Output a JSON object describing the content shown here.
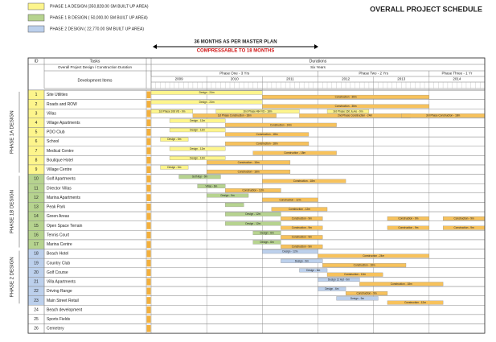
{
  "legend": [
    {
      "label": "PHASE 1 A DESIGN (350,828.00 SM BUILT UP AREA)",
      "color": "#fdf58c"
    },
    {
      "label": "PHASE 1 B DESIGN ( 50,000.00 SM BUILT UP AREA)",
      "color": "#b6d38f"
    },
    {
      "label": "PHASE 2 DESIGN ( 22,770.00 SM BUILT UP AREA)",
      "color": "#bcd0ec"
    }
  ],
  "title": "OVERALL PROJECT SCHEDULE",
  "span": {
    "line1": "36 MONTHS AS PER MASTER PLAN",
    "line2": "COMPRESSABLE TO 18 MONTHS"
  },
  "construction_color": "#f7c25c",
  "table": {
    "headers": {
      "id": "ID",
      "tasks": "Tasks",
      "durations": "Durations"
    },
    "overall": {
      "task": "Overall Project Design / Construction Duration",
      "duration": "Six Years"
    },
    "items_header": "Development Items",
    "phases": [
      {
        "label": "Phase One - 3 Yrs",
        "start": 0,
        "end": 36
      },
      {
        "label": "Phase Two - 2 Yrs",
        "start": 36,
        "end": 60
      },
      {
        "label": "Phase Three - 1 Yr",
        "start": 60,
        "end": 72
      }
    ],
    "years": [
      "2009",
      "2010",
      "2011",
      "2012",
      "2013",
      "2014"
    ],
    "sections": [
      {
        "label": "PHASE 1A DESIGN",
        "color": "#fdf58c",
        "rows": [
          {
            "id": 1,
            "name": "Site Utilities",
            "design": [
              {
                "label": "Design - 24m",
                "start": 0,
                "end": 24
              }
            ],
            "construction": [
              {
                "label": "Construction - 36m",
                "start": 24,
                "end": 60
              }
            ]
          },
          {
            "id": 2,
            "name": "Roads and ROW",
            "design": [
              {
                "label": "Design - 24m",
                "start": 0,
                "end": 24
              }
            ],
            "construction": [
              {
                "label": "Construction - 36m",
                "start": 24,
                "end": 60
              }
            ]
          },
          {
            "id": 3,
            "name": "Villas",
            "design": [
              {
                "label": "1st Phase 108 VD - 9m",
                "start": 0,
                "end": 9
              },
              {
                "label": "2nd Phase 484 VD - 18m",
                "start": 14,
                "end": 32
              },
              {
                "label": "3rd Phase 160 Ju.Ao - 9m",
                "start": 38,
                "end": 47
              }
            ],
            "construction": [
              {
                "label": "1st Phase Construction - 18m",
                "start": 9,
                "end": 27
              },
              {
                "label": "2nd Phase Construction - 24m",
                "start": 32,
                "end": 56
              },
              {
                "label": "3rd Phase Construction - 18m",
                "start": 54,
                "end": 72
              }
            ]
          },
          {
            "id": 4,
            "name": "Village Apartments",
            "design": [
              {
                "label": "Design - 12m",
                "start": 4,
                "end": 16
              }
            ],
            "construction": [
              {
                "label": "Construction - 24m",
                "start": 16,
                "end": 40
              }
            ]
          },
          {
            "id": 5,
            "name": "PDO Club",
            "design": [
              {
                "label": "Design - 12m",
                "start": 4,
                "end": 16
              }
            ],
            "construction": [
              {
                "label": "Construction - 18m",
                "start": 16,
                "end": 34
              }
            ]
          },
          {
            "id": 6,
            "name": "School",
            "design": [
              {
                "label": "Design - 6m",
                "start": 2,
                "end": 8
              }
            ],
            "construction": [
              {
                "label": "Construction - 18m",
                "start": 16,
                "end": 34
              }
            ]
          },
          {
            "id": 7,
            "name": "Medical Centre",
            "design": [
              {
                "label": "Design - 12m",
                "start": 4,
                "end": 16
              }
            ],
            "construction": [
              {
                "label": "Construction - 18m",
                "start": 22,
                "end": 40
              }
            ]
          },
          {
            "id": 8,
            "name": "Boutique Hotel",
            "design": [
              {
                "label": "Design - 12m",
                "start": 4,
                "end": 16
              }
            ],
            "construction": [
              {
                "label": "Construction - 18m",
                "start": 12,
                "end": 30
              }
            ]
          },
          {
            "id": 9,
            "name": "Village Centre",
            "design": [
              {
                "label": "Design - 6m",
                "start": 2,
                "end": 8
              }
            ],
            "construction": [
              {
                "label": "Construction - 18m",
                "start": 12,
                "end": 30
              }
            ]
          }
        ]
      },
      {
        "label": "PHASE 1B DESIGN",
        "color": "#b6d38f",
        "rows": [
          {
            "id": 10,
            "name": "Golf Apartments",
            "design": [
              {
                "label": "Golf App - 9m",
                "start": 6,
                "end": 15
              }
            ],
            "construction": [
              {
                "label": "Construction - 18m",
                "start": 24,
                "end": 42
              }
            ]
          },
          {
            "id": 11,
            "name": "Director Villas",
            "design": [
              {
                "label": "Villas - 6m",
                "start": 10,
                "end": 16
              }
            ],
            "construction": [
              {
                "label": "Construction - 12m",
                "start": 16,
                "end": 28
              }
            ]
          },
          {
            "id": 12,
            "name": "Marina Apartments",
            "design": [
              {
                "label": "Design - 9m",
                "start": 12,
                "end": 21
              }
            ],
            "construction": [
              {
                "label": "Construction - 12m",
                "start": 24,
                "end": 36
              }
            ]
          },
          {
            "id": 13,
            "name": "Peak Park",
            "design": [
              {
                "start": 16,
                "end": 20
              }
            ],
            "construction": [
              {
                "label": "Construction - 12m",
                "start": 26,
                "end": 38
              }
            ]
          },
          {
            "id": 14,
            "name": "Green Areas",
            "design": [
              {
                "label": "Design - 12m",
                "start": 16,
                "end": 28
              }
            ],
            "construction": [
              {
                "label": "Construction - 9m",
                "start": 28,
                "end": 37
              },
              {
                "label": "Construction - 9m",
                "start": 51,
                "end": 60
              },
              {
                "label": "Construction - 9m",
                "start": 63,
                "end": 72
              }
            ]
          },
          {
            "id": 15,
            "name": "Open Space Terrain",
            "design": [
              {
                "label": "Design - 12m",
                "start": 16,
                "end": 28
              }
            ],
            "construction": [
              {
                "label": "Construction - 9m",
                "start": 28,
                "end": 37
              },
              {
                "label": "Construction - 9m",
                "start": 51,
                "end": 60
              },
              {
                "label": "Construction - 9m",
                "start": 63,
                "end": 72
              }
            ]
          },
          {
            "id": 16,
            "name": "Tennis Court",
            "design": [
              {
                "label": "Design - 6m",
                "start": 22,
                "end": 28
              }
            ],
            "construction": [
              {
                "label": "Construction - 9m",
                "start": 28,
                "end": 37
              }
            ]
          },
          {
            "id": 17,
            "name": "Marina Centre",
            "design": [
              {
                "label": "Design - 6m",
                "start": 22,
                "end": 28
              }
            ],
            "construction": [
              {
                "label": "Construction - 9m",
                "start": 28,
                "end": 37
              }
            ]
          }
        ]
      },
      {
        "label": "PHASE 2 DESIGN",
        "color": "#bcd0ec",
        "rows": [
          {
            "id": 18,
            "name": "Beach Hotel",
            "design": [
              {
                "label": "Design - 12m",
                "start": 24,
                "end": 36
              }
            ],
            "construction": [
              {
                "label": "Construction - 24m",
                "start": 36,
                "end": 60
              }
            ]
          },
          {
            "id": 19,
            "name": "Country Club",
            "design": [
              {
                "label": "Design - 9m",
                "start": 28,
                "end": 37
              }
            ],
            "construction": [
              {
                "label": "Construction - 18m",
                "start": 37,
                "end": 55
              }
            ]
          },
          {
            "id": 20,
            "name": "Golf Course",
            "design": [
              {
                "label": "Design - 6m",
                "start": 32,
                "end": 38
              }
            ],
            "construction": [
              {
                "label": "Construction - 12m",
                "start": 38,
                "end": 50
              }
            ]
          },
          {
            "id": 21,
            "name": "Villa Apartments",
            "design": [
              {
                "label": "Design 12 Apt - 9m",
                "start": 36,
                "end": 45
              }
            ],
            "construction": [
              {
                "label": "Construction - 18m",
                "start": 45,
                "end": 63
              }
            ]
          },
          {
            "id": 22,
            "name": "Driving Range",
            "design": [
              {
                "label": "Design - 6m",
                "start": 36,
                "end": 42
              }
            ],
            "construction": [
              {
                "label": "Construction - 9m",
                "start": 42,
                "end": 51
              }
            ]
          },
          {
            "id": 23,
            "name": "Main Street Retail",
            "design": [
              {
                "label": "Design - 9m",
                "start": 40,
                "end": 49
              }
            ],
            "construction": [
              {
                "label": "Construction - 12m",
                "start": 51,
                "end": 63
              }
            ]
          }
        ]
      }
    ],
    "other_rows": [
      {
        "id": 24,
        "name": "Beach development"
      },
      {
        "id": 25,
        "name": "Sports Fields"
      },
      {
        "id": 26,
        "name": "Cemetery"
      }
    ]
  }
}
